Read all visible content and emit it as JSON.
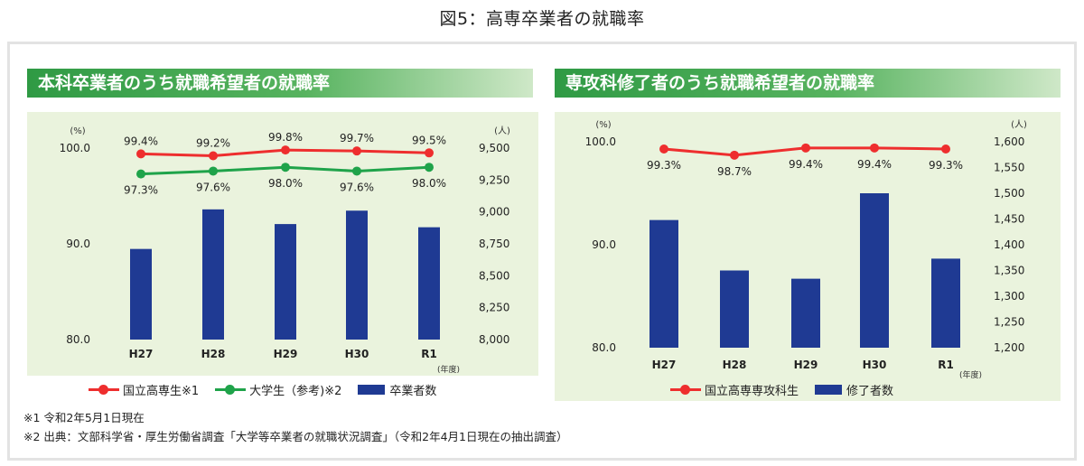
{
  "title": "図5：高専卒業者の就職率",
  "colors": {
    "red": "#ee2e2e",
    "green": "#1fa34a",
    "bar": "#1f3a93"
  },
  "chart_data": [
    {
      "type": "bar",
      "title": "本科卒業者のうち就職希望者の就職率",
      "categories": [
        "H27",
        "H28",
        "H29",
        "H30",
        "R1"
      ],
      "xlabel": "(年度)",
      "left_axis": {
        "label": "(%)",
        "ticks": [
          "100.0",
          "90.0",
          "80.0"
        ],
        "range": [
          80,
          100
        ]
      },
      "right_axis": {
        "label": "(人)",
        "ticks": [
          "9,500",
          "9,250",
          "9,000",
          "8,750",
          "8,500",
          "8,250",
          "8,000"
        ],
        "range": [
          8000,
          9500
        ]
      },
      "series": [
        {
          "name": "国立高専生※1",
          "kind": "line",
          "axis": "left",
          "color": "#ee2e2e",
          "values": [
            99.4,
            99.2,
            99.8,
            99.7,
            99.5
          ],
          "labels": [
            "99.4%",
            "99.2%",
            "99.8%",
            "99.7%",
            "99.5%"
          ],
          "label_pos": "above"
        },
        {
          "name": "大学生（参考)※2",
          "kind": "line",
          "axis": "left",
          "color": "#1fa34a",
          "values": [
            97.3,
            97.6,
            98.0,
            97.6,
            98.0
          ],
          "labels": [
            "97.3%",
            "97.6%",
            "98.0%",
            "97.6%",
            "98.0%"
          ],
          "label_pos": "below"
        },
        {
          "name": "卒業者数",
          "kind": "bar",
          "axis": "right",
          "color": "#1f3a93",
          "values": [
            8710,
            9020,
            8905,
            9010,
            8880
          ]
        }
      ]
    },
    {
      "type": "bar",
      "title": "専攻科修了者のうち就職希望者の就職率",
      "categories": [
        "H27",
        "H28",
        "H29",
        "H30",
        "R1"
      ],
      "xlabel": "(年度)",
      "left_axis": {
        "label": "(%)",
        "ticks": [
          "100.0",
          "90.0",
          "80.0"
        ],
        "range": [
          80,
          100
        ]
      },
      "right_axis": {
        "label": "(人)",
        "ticks": [
          "1,600",
          "1,550",
          "1,500",
          "1,450",
          "1,400",
          "1,350",
          "1,300",
          "1,250",
          "1,200"
        ],
        "range": [
          1200,
          1600
        ]
      },
      "series": [
        {
          "name": "国立高専専攻科生",
          "kind": "line",
          "axis": "left",
          "color": "#ee2e2e",
          "values": [
            99.3,
            98.7,
            99.4,
            99.4,
            99.3
          ],
          "labels": [
            "99.3%",
            "98.7%",
            "99.4%",
            "99.4%",
            "99.3%"
          ],
          "label_pos": "below"
        },
        {
          "name": "修了者数",
          "kind": "bar",
          "axis": "right",
          "color": "#1f3a93",
          "values": [
            1448,
            1350,
            1334,
            1500,
            1373
          ]
        }
      ]
    }
  ],
  "legend1": {
    "red": "国立高専生※1",
    "green": "大学生（参考)※2",
    "bar": "卒業者数"
  },
  "legend2": {
    "red": "国立高専専攻科生",
    "bar": "修了者数"
  },
  "notes": [
    "※1 令和2年5月1日現在",
    "※2 出典：文部科学省・厚生労働省調査「大学等卒業者の就職状況調査」（令和2年4月1日現在の抽出調査）"
  ]
}
